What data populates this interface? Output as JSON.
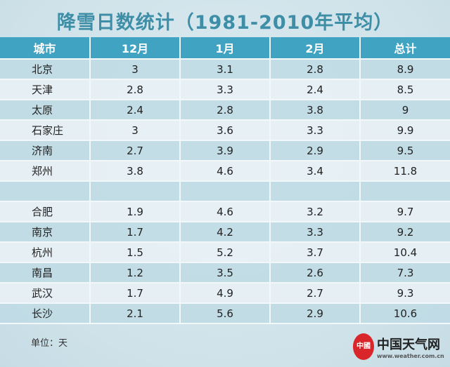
{
  "chart_data": {
    "type": "table",
    "title": "降雪日数统计（1981-2010年平均）",
    "columns": [
      "城市",
      "12月",
      "1月",
      "2月",
      "总计"
    ],
    "row_groups": [
      [
        [
          "北京",
          "3",
          "3.1",
          "2.8",
          "8.9"
        ],
        [
          "天津",
          "2.8",
          "3.3",
          "2.4",
          "8.5"
        ],
        [
          "太原",
          "2.4",
          "2.8",
          "3.8",
          "9"
        ],
        [
          "石家庄",
          "3",
          "3.6",
          "3.3",
          "9.9"
        ],
        [
          "济南",
          "2.7",
          "3.9",
          "2.9",
          "9.5"
        ],
        [
          "郑州",
          "3.8",
          "4.6",
          "3.4",
          "11.8"
        ]
      ],
      [
        [
          "合肥",
          "1.9",
          "4.6",
          "3.2",
          "9.7"
        ],
        [
          "南京",
          "1.7",
          "4.2",
          "3.3",
          "9.2"
        ],
        [
          "杭州",
          "1.5",
          "5.2",
          "3.7",
          "10.4"
        ],
        [
          "南昌",
          "1.2",
          "3.5",
          "2.6",
          "7.3"
        ],
        [
          "武汉",
          "1.7",
          "4.9",
          "2.7",
          "9.3"
        ],
        [
          "长沙",
          "2.1",
          "5.6",
          "2.9",
          "10.6"
        ]
      ]
    ],
    "unit_note": "单位：天"
  },
  "logo": {
    "name": "中国天气网",
    "url": "www.weather.com.cn",
    "seal": "中國"
  },
  "colors": {
    "header": "#3fa3c1",
    "title": "#3d8ea6",
    "seal": "#d8262b"
  }
}
